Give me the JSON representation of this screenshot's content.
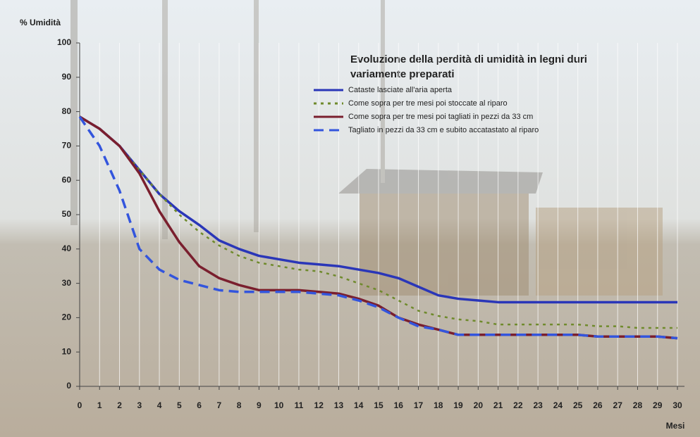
{
  "chart_data": {
    "type": "line",
    "title": [
      "Evoluzione della perdità di umidità in legni duri",
      "variamente preparati"
    ],
    "y_label": "% Umidità",
    "x_label": "Mesi",
    "x": [
      0,
      1,
      2,
      3,
      4,
      5,
      6,
      7,
      8,
      9,
      10,
      11,
      12,
      13,
      14,
      15,
      16,
      17,
      18,
      19,
      20,
      21,
      22,
      23,
      24,
      25,
      26,
      27,
      28,
      29,
      30
    ],
    "xlim": [
      0,
      30
    ],
    "xticks": [
      0,
      1,
      2,
      3,
      4,
      5,
      6,
      7,
      8,
      9,
      10,
      11,
      12,
      13,
      14,
      15,
      16,
      17,
      18,
      19,
      20,
      21,
      22,
      23,
      24,
      25,
      26,
      27,
      28,
      29,
      30
    ],
    "ylim": [
      0,
      100
    ],
    "yticks": [
      0,
      10,
      20,
      30,
      40,
      50,
      60,
      70,
      80,
      90,
      100
    ],
    "grid": "x",
    "series": [
      {
        "name": "Cataste lasciate all'aria aperta",
        "color": "#2a36b8",
        "line_style": "solid",
        "values": [
          78.5,
          75,
          70,
          63,
          56,
          51,
          47,
          42.5,
          40,
          38,
          37,
          36,
          35.5,
          35,
          34,
          33,
          31.5,
          29,
          26.5,
          25.5,
          25,
          24.5,
          24.5,
          24.5,
          24.5,
          24.5,
          24.5,
          24.5,
          24.5,
          24.5,
          24.5
        ]
      },
      {
        "name": "Come sopra per tre mesi poi stoccate al riparo",
        "color": "#6f8a2c",
        "line_style": "dotted",
        "values": [
          78.5,
          75,
          70,
          63,
          56,
          50,
          45,
          41,
          38,
          36,
          35,
          34,
          33.5,
          32,
          30,
          28,
          25,
          22,
          20.5,
          19.5,
          19,
          18,
          18,
          18,
          18,
          18,
          17.5,
          17.5,
          17,
          17,
          17
        ]
      },
      {
        "name": "Come sopra per tre mesi poi tagliati in pezzi da 33 cm",
        "color": "#7a1f2e",
        "line_style": "solid",
        "values": [
          78.5,
          75,
          70,
          62,
          51,
          42,
          35,
          31.5,
          29.5,
          28,
          28,
          28,
          27.5,
          27,
          25.5,
          23.5,
          20,
          18,
          16.5,
          15,
          15,
          15,
          15,
          15,
          15,
          15,
          14.5,
          14.5,
          14.5,
          14.5,
          14
        ]
      },
      {
        "name": "Tagliato in pezzi da 33 cm e subito accatastato al riparo",
        "color": "#3355dd",
        "line_style": "dashed",
        "values": [
          78.5,
          70,
          57,
          40,
          34,
          31,
          29.5,
          28,
          27.5,
          27.5,
          27.5,
          27.5,
          27,
          26.5,
          25,
          23,
          20,
          17.5,
          16.5,
          15,
          15,
          15,
          15,
          15,
          15,
          15,
          14.5,
          14.5,
          14.5,
          14.5,
          14
        ]
      }
    ]
  }
}
